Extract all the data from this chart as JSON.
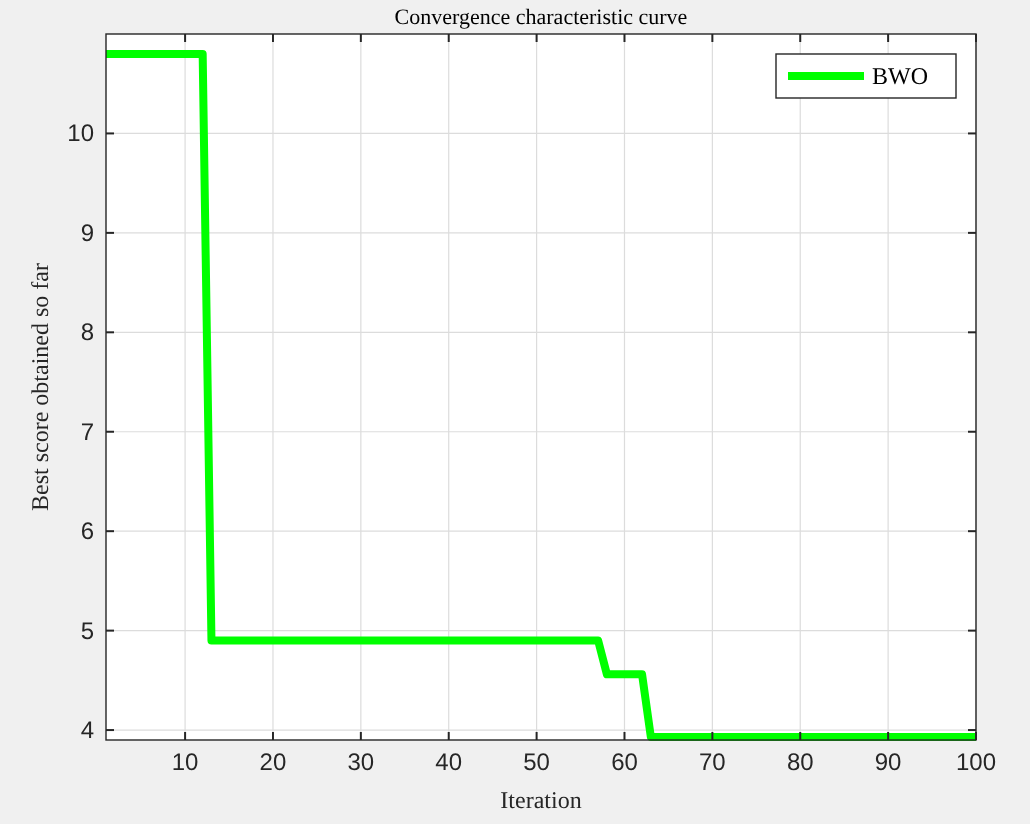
{
  "chart_data": {
    "type": "line",
    "title": "Convergence characteristic curve",
    "xlabel": "Iteration",
    "ylabel": "Best score obtained so far",
    "series": [
      {
        "name": "BWO",
        "color": "#00ff00",
        "x": [
          1,
          12,
          13,
          57,
          58,
          62,
          63,
          100
        ],
        "values": [
          10.8,
          10.8,
          4.9,
          4.9,
          4.56,
          4.56,
          3.93,
          3.93
        ]
      }
    ],
    "xlim": [
      1,
      100
    ],
    "xticks": [
      10,
      20,
      30,
      40,
      50,
      60,
      70,
      80,
      90,
      100
    ],
    "ylim": [
      3.9,
      11
    ],
    "yticks": [
      4,
      5,
      6,
      7,
      8,
      9,
      10
    ],
    "grid": true,
    "legend": "top right",
    "line_style": "solid",
    "marker": "none"
  }
}
